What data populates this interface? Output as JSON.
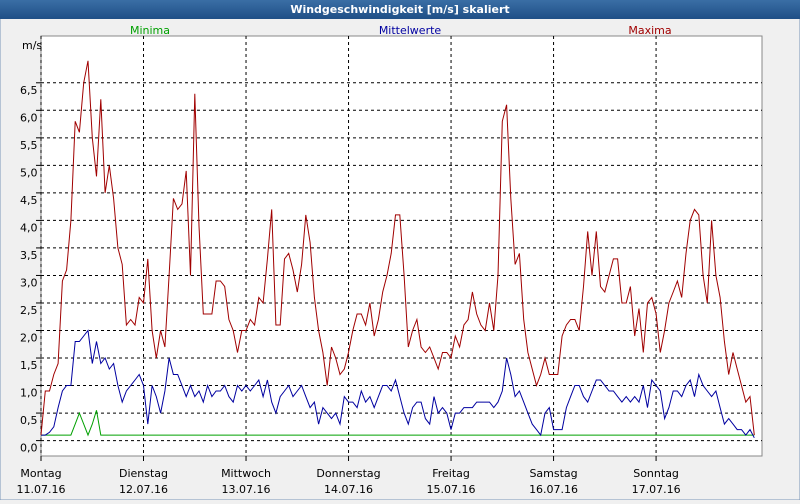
{
  "chart_data": {
    "type": "line",
    "title": "Windgeschwindigkeit [m/s] skaliert",
    "ylabel": "m/s",
    "x": [
      0,
      1,
      2,
      3,
      4,
      5,
      6,
      7,
      8,
      9,
      10,
      11,
      12,
      13,
      14,
      15,
      16,
      17,
      18,
      19,
      20,
      21,
      22,
      23,
      24,
      25,
      26,
      27,
      28,
      29,
      30,
      31,
      32,
      33,
      34,
      35,
      36,
      37,
      38,
      39,
      40,
      41,
      42,
      43,
      44,
      45,
      46,
      47,
      48,
      49,
      50,
      51,
      52,
      53,
      54,
      55,
      56,
      57,
      58,
      59,
      60,
      61,
      62,
      63,
      64,
      65,
      66,
      67,
      68,
      69,
      70,
      71,
      72,
      73,
      74,
      75,
      76,
      77,
      78,
      79,
      80,
      81,
      82,
      83,
      84,
      85,
      86,
      87,
      88,
      89,
      90,
      91,
      92,
      93,
      94,
      95,
      96,
      97,
      98,
      99,
      100,
      101,
      102,
      103,
      104,
      105,
      106,
      107,
      108,
      109,
      110,
      111,
      112,
      113,
      114,
      115,
      116,
      117,
      118,
      119,
      120,
      121,
      122,
      123,
      124,
      125,
      126,
      127,
      128,
      129,
      130,
      131,
      132,
      133,
      134,
      135,
      136,
      137,
      138,
      139,
      140,
      141,
      142,
      143,
      144,
      145,
      146,
      147,
      148,
      149,
      150,
      151,
      152,
      153,
      154,
      155,
      156,
      157,
      158,
      159,
      160,
      161,
      162,
      163,
      164,
      165,
      166,
      167
    ],
    "xlim": [
      0,
      168.8
    ],
    "xticks": [
      {
        "value": 0,
        "label": "Montag",
        "date": "11.07.16"
      },
      {
        "value": 24,
        "label": "Dienstag",
        "date": "12.07.16"
      },
      {
        "value": 48,
        "label": "Mittwoch",
        "date": "13.07.16"
      },
      {
        "value": 72,
        "label": "Donnerstag",
        "date": "14.07.16"
      },
      {
        "value": 96,
        "label": "Freitag",
        "date": "15.07.16"
      },
      {
        "value": 120,
        "label": "Samstag",
        "date": "16.07.16"
      },
      {
        "value": 144,
        "label": "Sonntag",
        "date": "17.07.16"
      }
    ],
    "ylim": [
      -0.28,
      7.35
    ],
    "yticks": [
      {
        "value": 0,
        "label": "0,0"
      },
      {
        "value": 0.5,
        "label": "0,5"
      },
      {
        "value": 1,
        "label": "1,0"
      },
      {
        "value": 1.5,
        "label": "1,5"
      },
      {
        "value": 2,
        "label": "2,0"
      },
      {
        "value": 2.5,
        "label": "2,5"
      },
      {
        "value": 3,
        "label": "3,0"
      },
      {
        "value": 3.5,
        "label": "3,5"
      },
      {
        "value": 4,
        "label": "4,0"
      },
      {
        "value": 4.5,
        "label": "4,5"
      },
      {
        "value": 5,
        "label": "5,0"
      },
      {
        "value": 5.5,
        "label": "5,5"
      },
      {
        "value": 6,
        "label": "6,0"
      },
      {
        "value": 6.5,
        "label": "6,5"
      }
    ],
    "grid": true,
    "series": [
      {
        "name": "Minima",
        "color": "#00a000",
        "values": [
          0.1,
          0.1,
          0.1,
          0.1,
          0.1,
          0.1,
          0.1,
          0.1,
          0.3,
          0.5,
          0.3,
          0.1,
          0.3,
          0.55,
          0.1,
          0.1,
          0.1,
          0.1,
          0.1,
          0.1,
          0.1,
          0.1,
          0.1,
          0.1,
          0.1,
          0.1,
          0.1,
          0.1,
          0.1,
          0.1,
          0.1,
          0.1,
          0.1,
          0.1,
          0.1,
          0.1,
          0.1,
          0.1,
          0.1,
          0.1,
          0.1,
          0.1,
          0.1,
          0.1,
          0.1,
          0.1,
          0.1,
          0.1,
          0.1,
          0.1,
          0.1,
          0.1,
          0.1,
          0.1,
          0.1,
          0.1,
          0.1,
          0.1,
          0.1,
          0.1,
          0.1,
          0.1,
          0.1,
          0.1,
          0.1,
          0.1,
          0.1,
          0.1,
          0.1,
          0.1,
          0.1,
          0.1,
          0.1,
          0.1,
          0.1,
          0.1,
          0.1,
          0.1,
          0.1,
          0.1,
          0.1,
          0.1,
          0.1,
          0.1,
          0.1,
          0.1,
          0.1,
          0.1,
          0.1,
          0.1,
          0.1,
          0.1,
          0.1,
          0.1,
          0.1,
          0.1,
          0.1,
          0.1,
          0.1,
          0.1,
          0.1,
          0.1,
          0.1,
          0.1,
          0.1,
          0.1,
          0.1,
          0.1,
          0.1,
          0.1,
          0.1,
          0.1,
          0.1,
          0.1,
          0.1,
          0.1,
          0.1,
          0.1,
          0.1,
          0.1,
          0.1,
          0.1,
          0.1,
          0.1,
          0.1,
          0.1,
          0.1,
          0.1,
          0.1,
          0.1,
          0.1,
          0.1,
          0.1,
          0.1,
          0.1,
          0.1,
          0.1,
          0.1,
          0.1,
          0.1,
          0.1,
          0.1,
          0.1,
          0.1,
          0.1,
          0.1,
          0.1,
          0.1,
          0.1,
          0.1,
          0.1,
          0.1,
          0.1,
          0.1,
          0.1,
          0.1,
          0.1,
          0.1,
          0.1,
          0.1,
          0.1,
          0.1,
          0.1,
          0.1,
          0.1,
          0.1,
          0.1,
          0.1
        ]
      },
      {
        "name": "Mittelwerte",
        "color": "#0000a0",
        "values": [
          0.1,
          0.1,
          0.15,
          0.25,
          0.6,
          0.9,
          1.0,
          1.0,
          1.8,
          1.8,
          1.9,
          2.0,
          1.4,
          1.8,
          1.4,
          1.5,
          1.3,
          1.4,
          1.0,
          0.7,
          0.9,
          1.0,
          1.1,
          1.2,
          1.0,
          0.3,
          1.0,
          0.8,
          0.5,
          0.9,
          1.5,
          1.2,
          1.2,
          1.0,
          0.8,
          1.0,
          0.8,
          0.9,
          0.7,
          1.0,
          0.8,
          0.9,
          0.9,
          1.0,
          0.8,
          0.7,
          1.0,
          0.9,
          1.0,
          0.9,
          1.0,
          1.1,
          0.8,
          1.1,
          0.7,
          0.5,
          0.8,
          0.9,
          1.0,
          0.8,
          0.9,
          1.0,
          0.8,
          0.6,
          0.7,
          0.3,
          0.6,
          0.5,
          0.4,
          0.5,
          0.3,
          0.8,
          0.7,
          0.7,
          0.6,
          0.9,
          0.7,
          0.8,
          0.6,
          0.8,
          1.0,
          1.0,
          0.9,
          1.1,
          0.8,
          0.5,
          0.3,
          0.6,
          0.7,
          0.7,
          0.4,
          0.3,
          0.8,
          0.5,
          0.6,
          0.5,
          0.2,
          0.5,
          0.5,
          0.6,
          0.6,
          0.6,
          0.7,
          0.7,
          0.7,
          0.7,
          0.6,
          0.7,
          0.9,
          1.5,
          1.2,
          0.8,
          0.9,
          0.7,
          0.5,
          0.3,
          0.2,
          0.1,
          0.5,
          0.6,
          0.2,
          0.2,
          0.2,
          0.6,
          0.8,
          1.0,
          1.0,
          0.8,
          0.7,
          0.9,
          1.1,
          1.1,
          1.0,
          0.9,
          0.9,
          0.8,
          0.7,
          0.8,
          0.7,
          0.8,
          0.7,
          1.0,
          0.6,
          1.1,
          1.0,
          0.9,
          0.4,
          0.6,
          0.9,
          0.9,
          0.8,
          1.0,
          1.1,
          0.8,
          1.2,
          1.0,
          0.9,
          0.8,
          0.9,
          0.6,
          0.3,
          0.4,
          0.3,
          0.2,
          0.2,
          0.1,
          0.2,
          0.05
        ]
      },
      {
        "name": "Maxima",
        "color": "#a00000",
        "values": [
          0.1,
          0.9,
          0.9,
          1.2,
          1.4,
          2.9,
          3.1,
          4.0,
          5.8,
          5.6,
          6.5,
          6.9,
          5.5,
          4.8,
          6.2,
          4.5,
          5.0,
          4.4,
          3.5,
          3.2,
          2.1,
          2.2,
          2.1,
          2.6,
          2.5,
          3.3,
          2.0,
          1.5,
          2.0,
          1.7,
          3.0,
          4.4,
          4.2,
          4.3,
          4.9,
          3.0,
          6.3,
          3.9,
          2.3,
          2.3,
          2.3,
          2.9,
          2.9,
          2.8,
          2.2,
          2.0,
          1.6,
          2.0,
          2.0,
          2.2,
          2.1,
          2.6,
          2.5,
          3.3,
          4.2,
          2.1,
          2.1,
          3.3,
          3.4,
          3.1,
          2.7,
          3.2,
          4.1,
          3.6,
          2.6,
          2.0,
          1.6,
          1.0,
          1.7,
          1.5,
          1.2,
          1.3,
          1.6,
          2.0,
          2.3,
          2.3,
          2.1,
          2.5,
          1.9,
          2.2,
          2.7,
          3.0,
          3.4,
          4.1,
          4.1,
          3.0,
          1.7,
          2.0,
          2.2,
          1.7,
          1.6,
          1.7,
          1.5,
          1.3,
          1.6,
          1.6,
          1.5,
          1.9,
          1.7,
          2.1,
          2.2,
          2.7,
          2.3,
          2.1,
          2.0,
          2.5,
          2.0,
          3.0,
          5.8,
          6.1,
          4.4,
          3.2,
          3.4,
          2.2,
          1.6,
          1.3,
          1.0,
          1.2,
          1.5,
          1.2,
          1.2,
          1.2,
          1.9,
          2.1,
          2.2,
          2.2,
          2.0,
          2.8,
          3.8,
          3.0,
          3.8,
          2.8,
          2.7,
          3.0,
          3.3,
          3.3,
          2.5,
          2.5,
          2.8,
          1.9,
          2.4,
          1.6,
          2.5,
          2.6,
          2.3,
          1.6,
          2.0,
          2.5,
          2.7,
          2.9,
          2.6,
          3.4,
          4.0,
          4.2,
          4.1,
          3.0,
          2.5,
          4.0,
          3.0,
          2.6,
          1.8,
          1.2,
          1.6,
          1.3,
          1.0,
          0.7,
          0.8,
          0.1
        ]
      }
    ]
  }
}
